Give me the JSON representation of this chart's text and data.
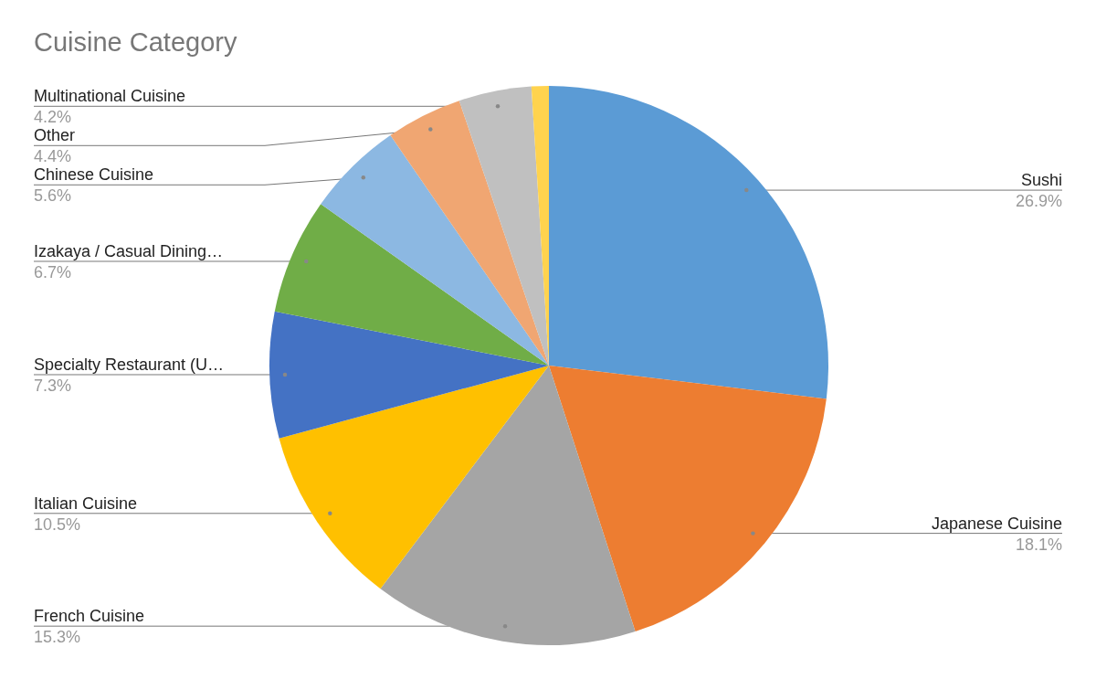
{
  "chart_data": {
    "type": "pie",
    "title": "Cuisine Category",
    "categories": [
      "Sushi",
      "Japanese Cuisine",
      "French Cuisine",
      "Italian Cuisine",
      "Specialty Restaurant (U…",
      "Izakaya / Casual Dining…",
      "Chinese Cuisine",
      "Other",
      "Multinational Cuisine",
      null
    ],
    "values": [
      26.9,
      18.1,
      15.3,
      10.5,
      7.3,
      6.7,
      5.6,
      4.4,
      4.2,
      1.0
    ],
    "value_labels": [
      "26.9%",
      "18.1%",
      "15.3%",
      "10.5%",
      "7.3%",
      "6.7%",
      "5.6%",
      "4.4%",
      "4.2%",
      null
    ],
    "colors": [
      "#5b9bd5",
      "#ed7d31",
      "#a5a5a5",
      "#ffc000",
      "#4472c4",
      "#70ad47",
      "#8cb8e2",
      "#f0a672",
      "#c0c0c0",
      "#ffd34e"
    ]
  }
}
